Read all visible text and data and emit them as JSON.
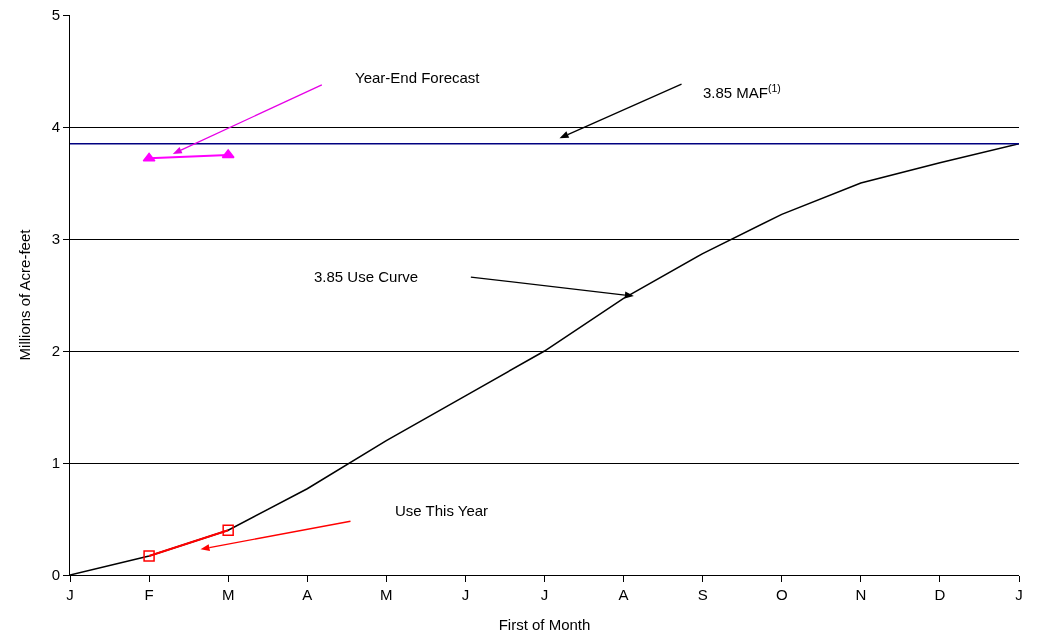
{
  "chart_data": {
    "type": "line",
    "xlabel": "First of Month",
    "ylabel": "Millions of Acre-feet",
    "categories": [
      "J",
      "F",
      "M",
      "A",
      "M",
      "J",
      "J",
      "A",
      "S",
      "O",
      "N",
      "D",
      "J"
    ],
    "series": [
      {
        "color": "#000000",
        "marker": "none",
        "values": [
          0,
          0.17,
          0.4,
          0.77,
          1.2,
          1.6,
          2.0,
          2.47,
          2.87,
          3.22,
          3.5,
          3.68,
          3.85
        ]
      },
      {
        "color": "#ff0000",
        "marker": "square",
        "values": [
          null,
          0.17,
          0.4,
          null,
          null,
          null,
          null,
          null,
          null,
          null,
          null,
          null,
          null
        ]
      },
      {
        "color": "#ff00ff",
        "marker": "triangle",
        "values": [
          null,
          3.72,
          3.75,
          null,
          null,
          null,
          null,
          null,
          null,
          null,
          null,
          null,
          null
        ]
      }
    ],
    "ref_lines": [
      {
        "axis": "y",
        "value": 3.85,
        "color": "#000080"
      }
    ],
    "annotations": [
      "Year-End Forecast",
      "3.85 MAF$^{(1)}$",
      "3.85 Use Curve",
      "Use This Year"
    ],
    "ylim": [
      0,
      5
    ],
    "yticks": [
      0,
      1,
      2,
      3,
      4,
      5
    ],
    "grid": "y"
  }
}
